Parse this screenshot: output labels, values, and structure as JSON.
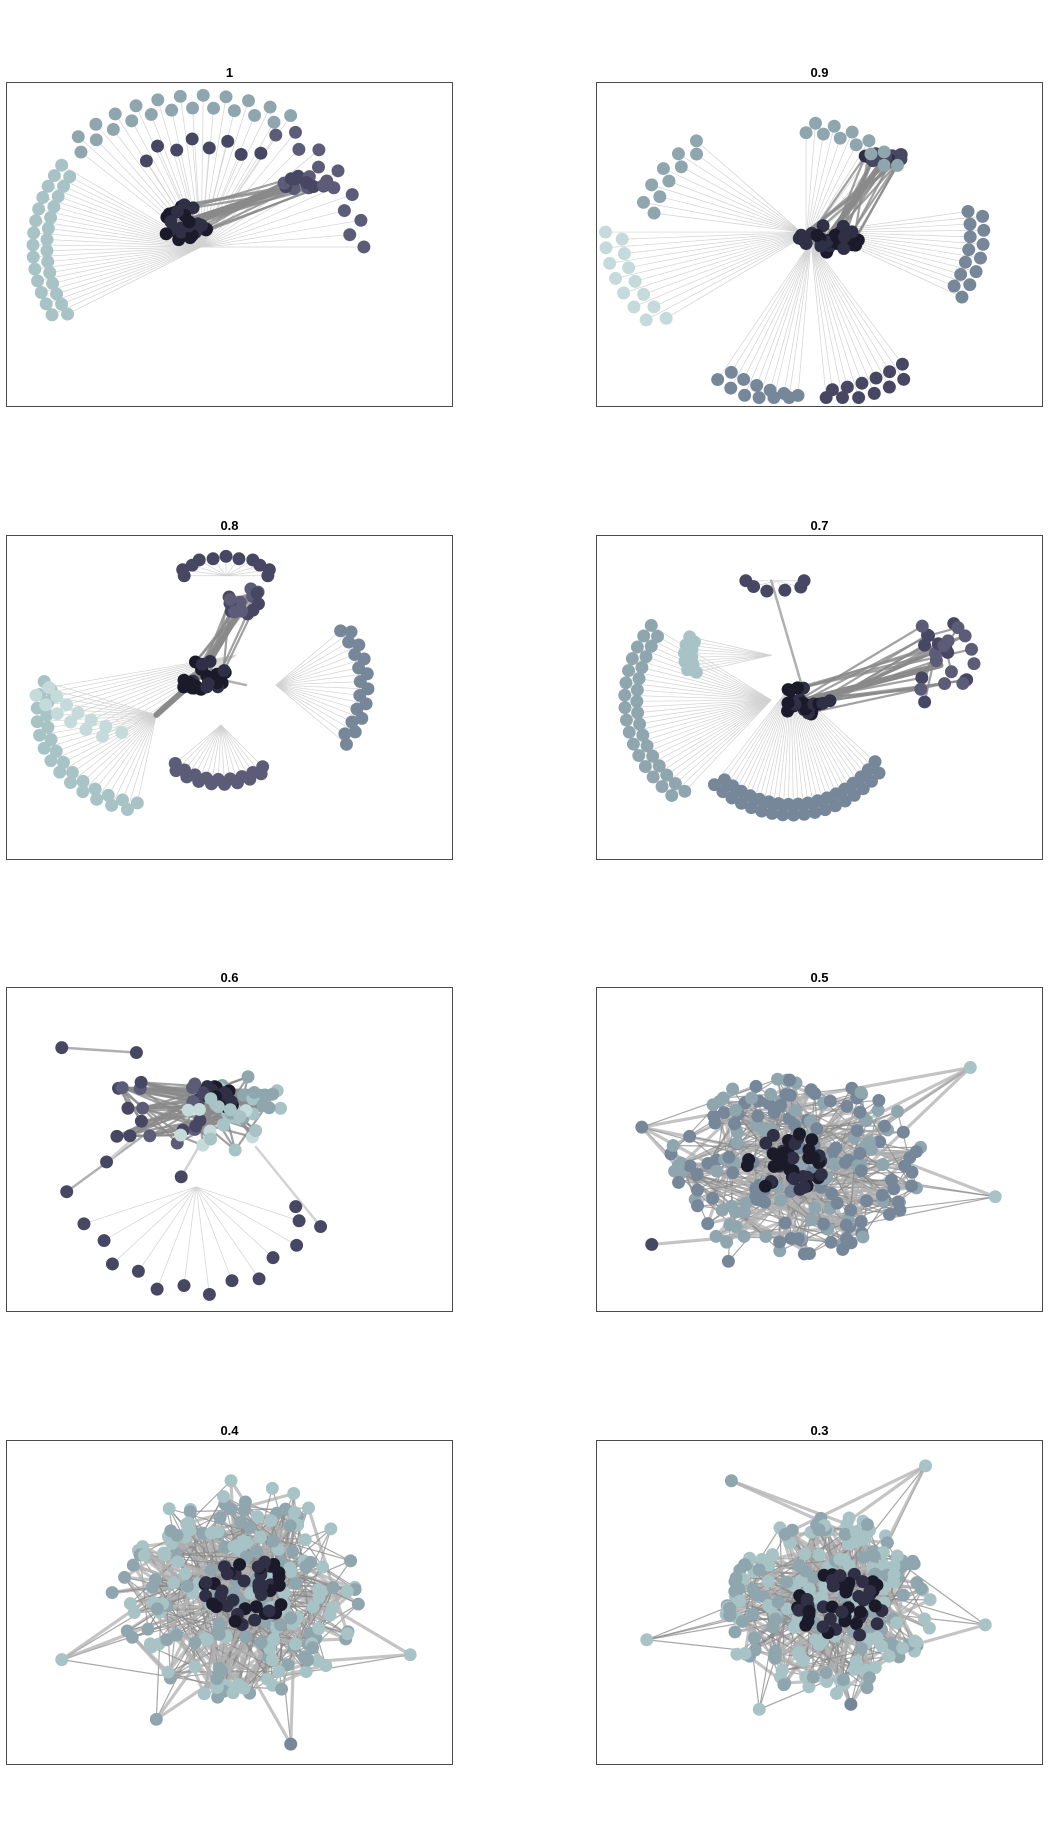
{
  "figure": {
    "panels": [
      {
        "id": "p1",
        "title": "1",
        "layout": "hub-radial"
      },
      {
        "id": "p2",
        "title": "0.9",
        "layout": "hub-radial"
      },
      {
        "id": "p3",
        "title": "0.8",
        "layout": "hub-clusters"
      },
      {
        "id": "p4",
        "title": "0.7",
        "layout": "hub-clusters"
      },
      {
        "id": "p5",
        "title": "0.6",
        "layout": "hub-sparse"
      },
      {
        "id": "p6",
        "title": "0.5",
        "layout": "dense-cloud"
      },
      {
        "id": "p7",
        "title": "0.4",
        "layout": "dense-cloud"
      },
      {
        "id": "p8",
        "title": "0.3",
        "layout": "dense-cloud"
      }
    ],
    "node_colors": [
      "#1a1a2a",
      "#2f2f45",
      "#474763",
      "#5c5c78",
      "#76879a",
      "#8fa6ae",
      "#a8c3c5",
      "#c4dadb"
    ],
    "edge_colors": [
      "#8a8a8a",
      "#b0b0b0",
      "#d2d2d2"
    ]
  }
}
